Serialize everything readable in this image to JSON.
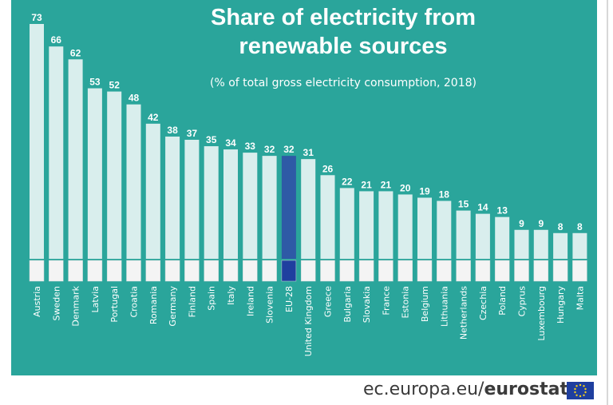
{
  "title_line1": "Share of electricity from",
  "title_line2": "renewable sources",
  "subtitle": "(% of total gross electricity consumption, 2018)",
  "footer": {
    "domain": "ec.europa.eu/",
    "brand": "eurostat"
  },
  "colors": {
    "background": "#2aa59b",
    "bar": "#d9eeed",
    "highlight_bar": "#2e5aa6",
    "text": "#ffffff"
  },
  "chart_data": {
    "type": "bar",
    "title": "Share of electricity from renewable sources",
    "subtitle": "(% of total gross electricity consumption, 2018)",
    "categories": [
      "Austria",
      "Sweden",
      "Denmark",
      "Latvia",
      "Portugal",
      "Croatia",
      "Romania",
      "Germany",
      "Finland",
      "Spain",
      "Italy",
      "Ireland",
      "Slovenia",
      "EU-28",
      "United Kingdom",
      "Greece",
      "Bulgaria",
      "Slovakia",
      "France",
      "Estonia",
      "Belgium",
      "Lithuania",
      "Netherlands",
      "Czechia",
      "Poland",
      "Cyprus",
      "Luxembourg",
      "Hungary",
      "Malta"
    ],
    "values": [
      73,
      66,
      62,
      53,
      52,
      48,
      42,
      38,
      37,
      35,
      34,
      33,
      32,
      32,
      31,
      26,
      22,
      21,
      21,
      20,
      19,
      18,
      15,
      14,
      13,
      9,
      9,
      8,
      8
    ],
    "highlight": "EU-28",
    "ylim": [
      0,
      73
    ],
    "grid": false,
    "data_labels": true
  }
}
